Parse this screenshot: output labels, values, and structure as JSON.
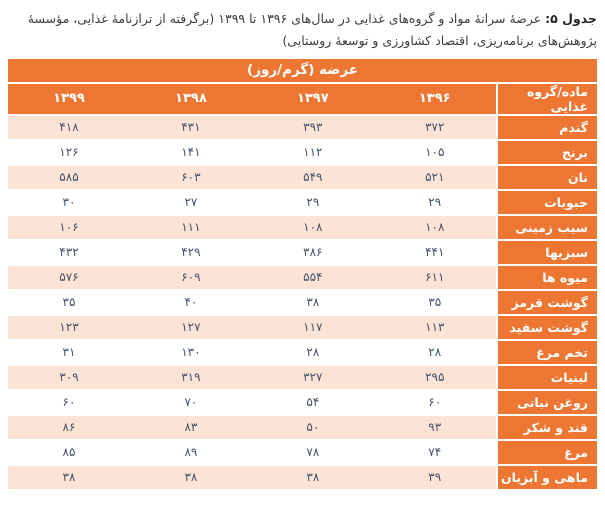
{
  "caption": {
    "label": "جدول ۵:",
    "text": "عرضهٔ سرانهٔ مواد و گروه‌های غذایی در سال‌های ۱۳۹۶ تا ۱۳۹۹ (برگرفته از ترازنامهٔ غذایی، مؤسسهٔ پژوهش‌های برنامه‌ریزی، اقتصاد کشاورزی و توسعهٔ روستایی)"
  },
  "table": {
    "title": "عرضه (گرم/روز)",
    "header_label_column": "ماده/گروه غذایی",
    "years": [
      "۱۳۹۶",
      "۱۳۹۷",
      "۱۳۹۸",
      "۱۳۹۹"
    ],
    "rows": [
      {
        "label": "گندم",
        "values": [
          "۳۷۲",
          "۳۹۳",
          "۴۳۱",
          "۴۱۸"
        ]
      },
      {
        "label": "برنج",
        "values": [
          "۱۰۵",
          "۱۱۲",
          "۱۴۱",
          "۱۲۶"
        ]
      },
      {
        "label": "نان",
        "values": [
          "۵۲۱",
          "۵۴۹",
          "۶۰۳",
          "۵۸۵"
        ]
      },
      {
        "label": "حبوبات",
        "values": [
          "۲۹",
          "۲۹",
          "۲۷",
          "۳۰"
        ]
      },
      {
        "label": "سیب زمینی",
        "values": [
          "۱۰۸",
          "۱۰۸",
          "۱۱۱",
          "۱۰۶"
        ]
      },
      {
        "label": "سبزیها",
        "values": [
          "۴۴۱",
          "۳۸۶",
          "۴۲۹",
          "۴۳۲"
        ]
      },
      {
        "label": "میوه ها",
        "values": [
          "۶۱۱",
          "۵۵۴",
          "۶۰۹",
          "۵۷۶"
        ]
      },
      {
        "label": "گوشت قرمز",
        "values": [
          "۳۵",
          "۳۸",
          "۴۰",
          "۳۵"
        ]
      },
      {
        "label": "گوشت سفید",
        "values": [
          "۱۱۳",
          "۱۱۷",
          "۱۲۷",
          "۱۲۳"
        ]
      },
      {
        "label": "تخم مرغ",
        "values": [
          "۲۸",
          "۲۸",
          "۱۳۰",
          "۳۱"
        ]
      },
      {
        "label": "لبنیات",
        "values": [
          "۲۹۵",
          "۳۲۷",
          "۳۱۹",
          "۳۰۹"
        ]
      },
      {
        "label": "روغن نباتی",
        "values": [
          "۶۰",
          "۵۴",
          "۷۰",
          "۶۰"
        ]
      },
      {
        "label": "قند و شکر",
        "values": [
          "۹۳",
          "۵۰",
          "۸۳",
          "۸۶"
        ]
      },
      {
        "label": "مرغ",
        "values": [
          "۷۴",
          "۷۸",
          "۸۹",
          "۸۵"
        ]
      },
      {
        "label": "ماهی و آبزیان",
        "values": [
          "۳۹",
          "۳۸",
          "۳۸",
          "۳۸"
        ]
      }
    ]
  },
  "colors": {
    "header_orange": "#ED7633",
    "row_peach": "#FBE3D5",
    "value_text": "#44546A"
  },
  "chart_data": {
    "type": "table",
    "title": "عرضه (گرم/روز)",
    "columns": [
      1396,
      1397,
      1398,
      1399
    ],
    "row_label_header": "ماده/گروه غذایی",
    "rows": [
      {
        "label": "گندم",
        "values": [
          372,
          393,
          431,
          418
        ]
      },
      {
        "label": "برنج",
        "values": [
          105,
          112,
          141,
          126
        ]
      },
      {
        "label": "نان",
        "values": [
          521,
          549,
          603,
          585
        ]
      },
      {
        "label": "حبوبات",
        "values": [
          29,
          29,
          27,
          30
        ]
      },
      {
        "label": "سیب زمینی",
        "values": [
          108,
          108,
          111,
          106
        ]
      },
      {
        "label": "سبزیها",
        "values": [
          441,
          386,
          429,
          432
        ]
      },
      {
        "label": "میوه ها",
        "values": [
          611,
          554,
          609,
          576
        ]
      },
      {
        "label": "گوشت قرمز",
        "values": [
          35,
          38,
          40,
          35
        ]
      },
      {
        "label": "گوشت سفید",
        "values": [
          113,
          117,
          127,
          123
        ]
      },
      {
        "label": "تخم مرغ",
        "values": [
          28,
          28,
          130,
          31
        ]
      },
      {
        "label": "لبنیات",
        "values": [
          295,
          327,
          319,
          309
        ]
      },
      {
        "label": "روغن نباتی",
        "values": [
          60,
          54,
          70,
          60
        ]
      },
      {
        "label": "قند و شکر",
        "values": [
          93,
          50,
          83,
          86
        ]
      },
      {
        "label": "مرغ",
        "values": [
          74,
          78,
          89,
          85
        ]
      },
      {
        "label": "ماهی و آبزیان",
        "values": [
          39,
          38,
          38,
          38
        ]
      }
    ]
  }
}
